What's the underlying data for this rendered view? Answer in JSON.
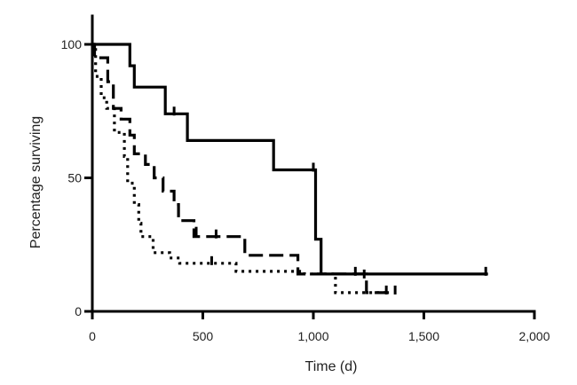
{
  "chart_data": {
    "type": "line",
    "subtype": "step",
    "xlabel": "Time (d)",
    "ylabel": "Percentage surviving",
    "xlim": [
      0,
      2000
    ],
    "ylim": [
      0,
      100
    ],
    "xticks": [
      0,
      500,
      1000,
      1500,
      2000
    ],
    "xtick_labels": [
      "0",
      "500",
      "1,000",
      "1,500",
      "2,000"
    ],
    "yticks": [
      0,
      50,
      100
    ],
    "ytick_labels": [
      "0",
      "50",
      "100"
    ],
    "grid": false,
    "legend": "none",
    "series": [
      {
        "style": "solid",
        "color": "#000000",
        "points": [
          [
            0,
            100
          ],
          [
            170,
            100
          ],
          [
            170,
            92
          ],
          [
            190,
            92
          ],
          [
            190,
            84
          ],
          [
            330,
            84
          ],
          [
            330,
            74
          ],
          [
            430,
            74
          ],
          [
            430,
            64
          ],
          [
            820,
            64
          ],
          [
            820,
            53
          ],
          [
            1010,
            53
          ],
          [
            1010,
            27
          ],
          [
            1035,
            27
          ],
          [
            1035,
            14
          ],
          [
            1790,
            14
          ]
        ],
        "censored": [
          [
            370,
            75
          ],
          [
            1000,
            54
          ],
          [
            1230,
            14
          ],
          [
            1780,
            15
          ]
        ]
      },
      {
        "style": "dashed",
        "color": "#000000",
        "points": [
          [
            0,
            100
          ],
          [
            10,
            100
          ],
          [
            10,
            95
          ],
          [
            70,
            95
          ],
          [
            70,
            86
          ],
          [
            95,
            86
          ],
          [
            95,
            76
          ],
          [
            130,
            76
          ],
          [
            130,
            72
          ],
          [
            170,
            72
          ],
          [
            170,
            66
          ],
          [
            190,
            66
          ],
          [
            190,
            59
          ],
          [
            240,
            59
          ],
          [
            240,
            55
          ],
          [
            280,
            55
          ],
          [
            280,
            50
          ],
          [
            320,
            50
          ],
          [
            320,
            45
          ],
          [
            370,
            45
          ],
          [
            370,
            40
          ],
          [
            390,
            40
          ],
          [
            390,
            34
          ],
          [
            460,
            34
          ],
          [
            460,
            28
          ],
          [
            690,
            28
          ],
          [
            690,
            21
          ],
          [
            930,
            21
          ],
          [
            930,
            14
          ],
          [
            1240,
            14
          ],
          [
            1240,
            7
          ],
          [
            1370,
            7
          ]
        ],
        "censored": [
          [
            470,
            30
          ],
          [
            560,
            29
          ],
          [
            1190,
            15
          ],
          [
            1370,
            8
          ]
        ]
      },
      {
        "style": "dotted",
        "color": "#000000",
        "points": [
          [
            0,
            100
          ],
          [
            15,
            100
          ],
          [
            15,
            88
          ],
          [
            40,
            88
          ],
          [
            40,
            80
          ],
          [
            65,
            80
          ],
          [
            65,
            76
          ],
          [
            100,
            76
          ],
          [
            100,
            67
          ],
          [
            145,
            67
          ],
          [
            145,
            58
          ],
          [
            160,
            58
          ],
          [
            160,
            48
          ],
          [
            190,
            48
          ],
          [
            190,
            40
          ],
          [
            210,
            40
          ],
          [
            210,
            33
          ],
          [
            220,
            33
          ],
          [
            220,
            28
          ],
          [
            275,
            28
          ],
          [
            275,
            22
          ],
          [
            350,
            22
          ],
          [
            350,
            20
          ],
          [
            395,
            20
          ],
          [
            395,
            18
          ],
          [
            650,
            18
          ],
          [
            650,
            15
          ],
          [
            960,
            15
          ],
          [
            960,
            14
          ],
          [
            1100,
            14
          ],
          [
            1100,
            7
          ],
          [
            1330,
            7
          ]
        ],
        "censored": [
          [
            540,
            19
          ],
          [
            1330,
            8
          ]
        ]
      }
    ]
  }
}
